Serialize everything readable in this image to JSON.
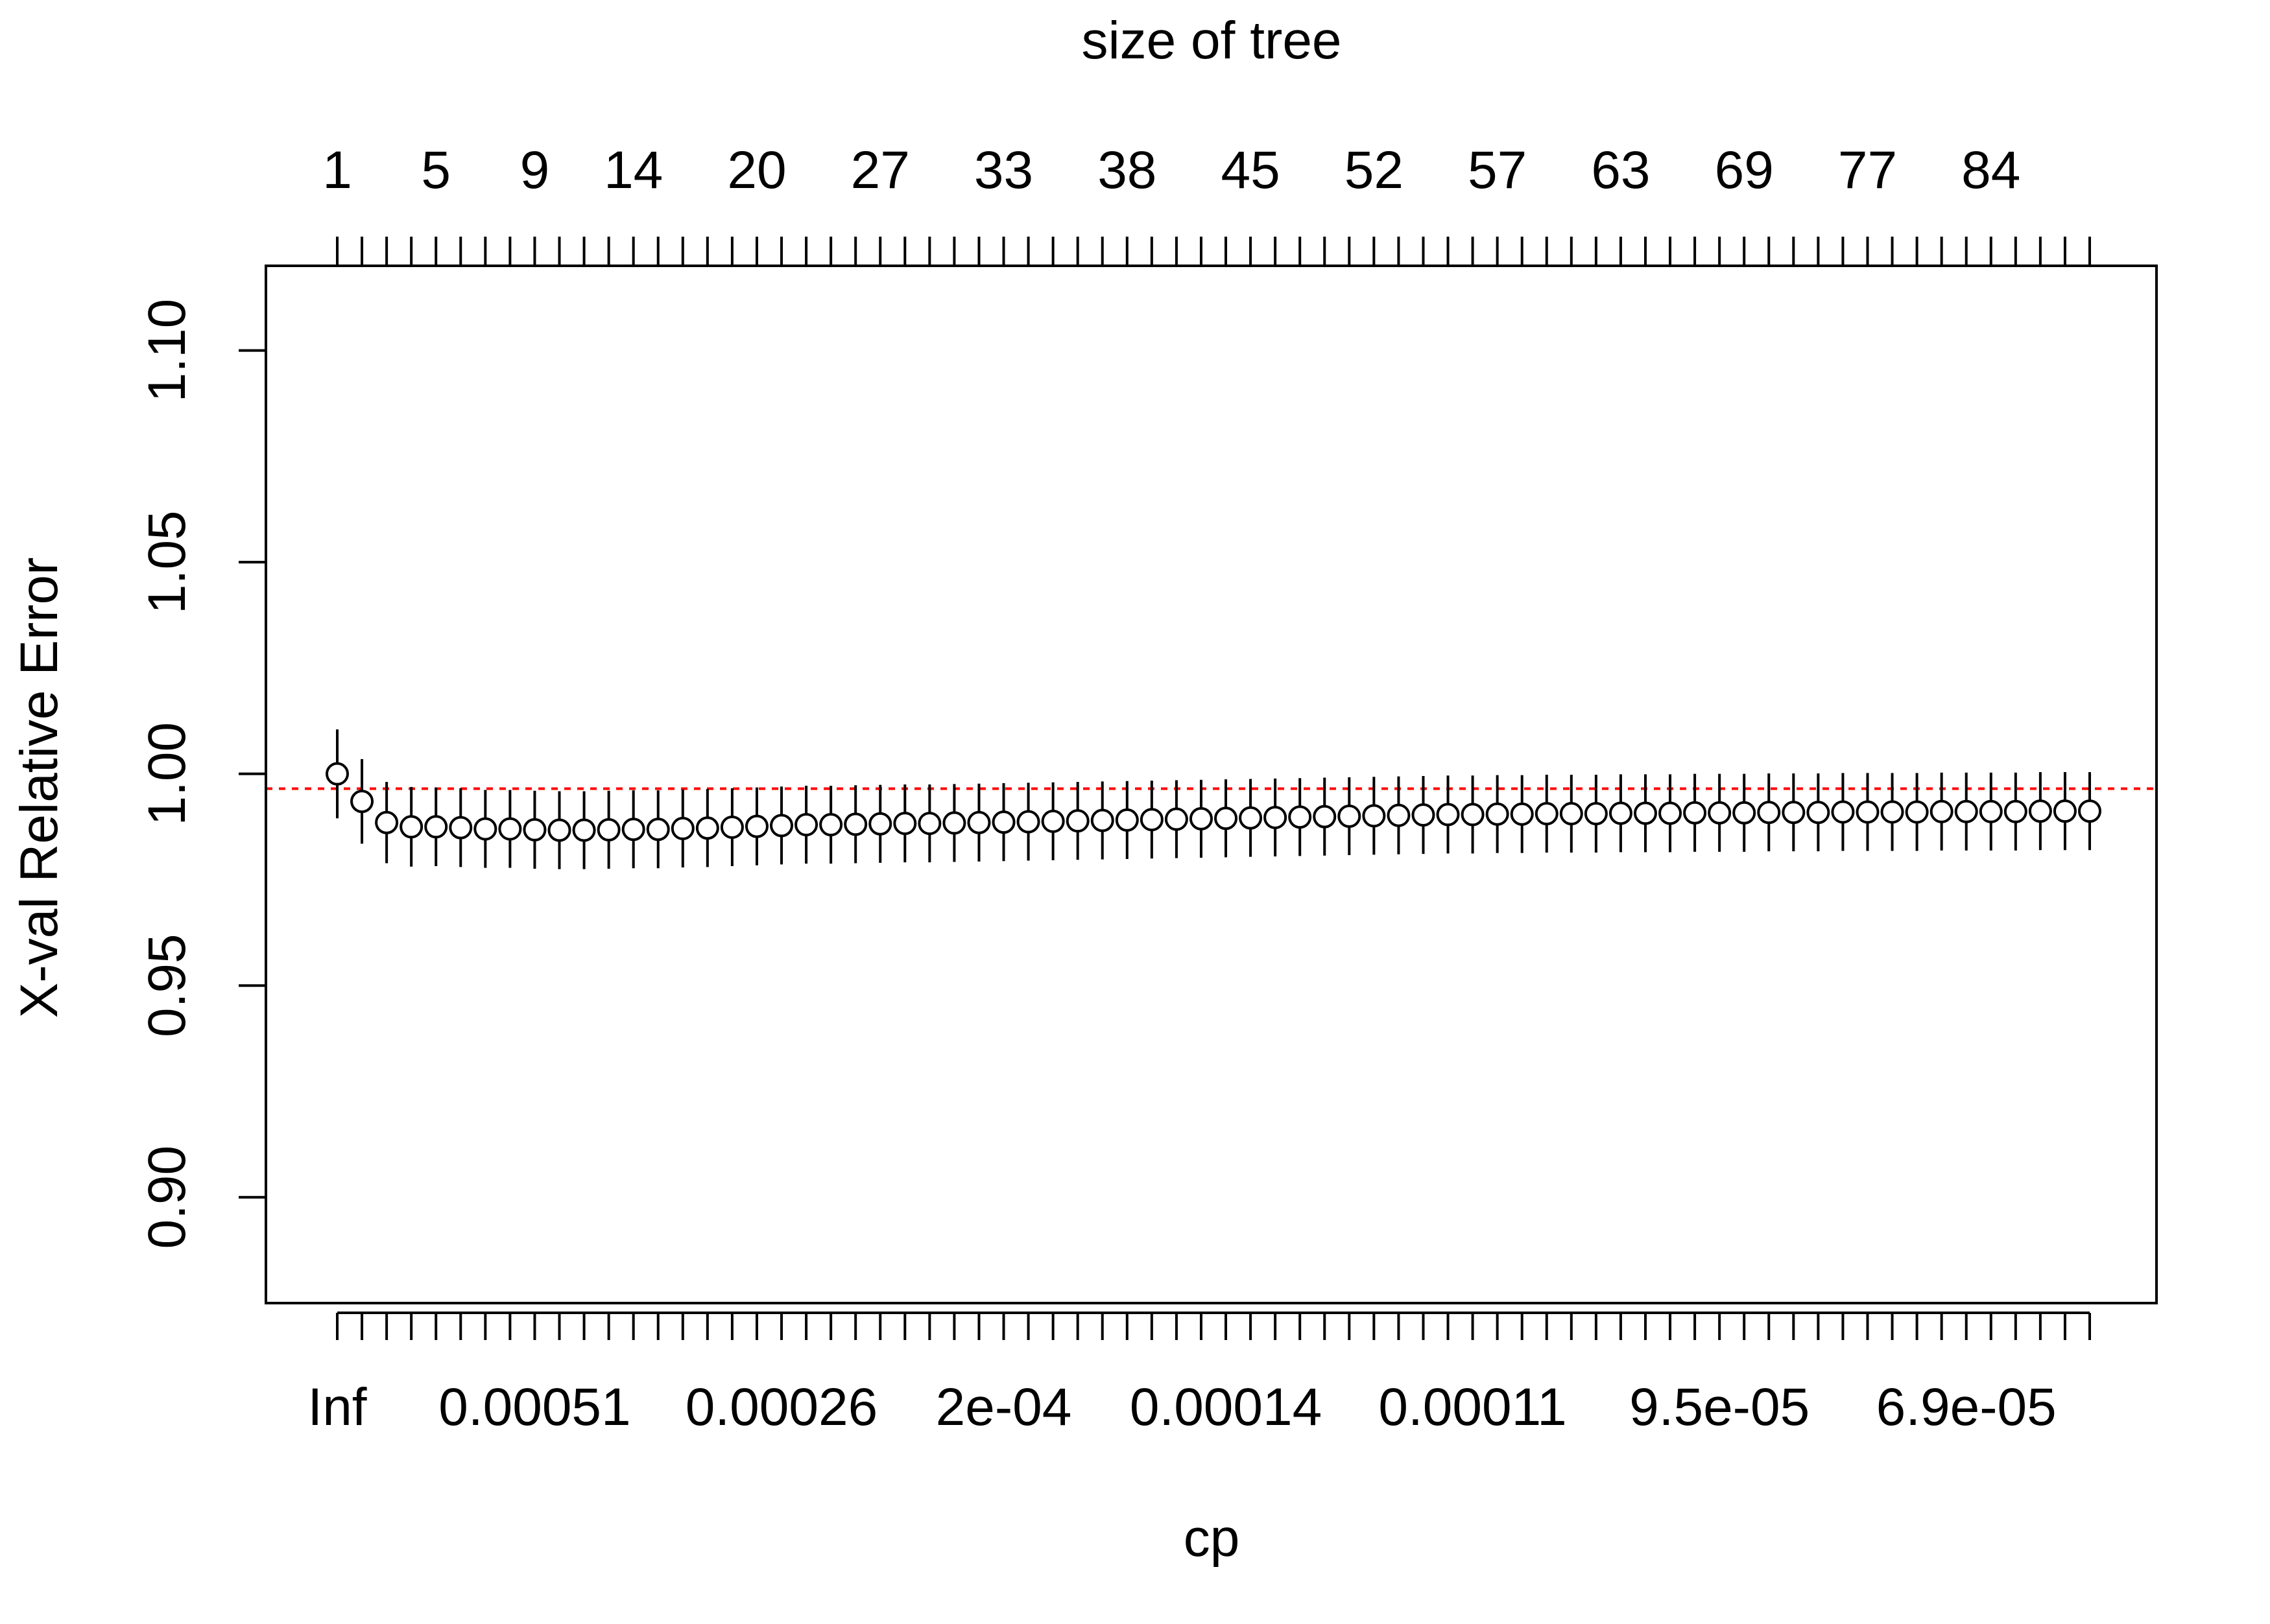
{
  "chart_data": {
    "type": "scatter",
    "subtype": "rpart-plotcp",
    "xlabel": "cp",
    "ylabel": "X-val Relative Error",
    "top_axis_label": "size of tree",
    "ylim": [
      0.875,
      1.12
    ],
    "y_ticks": [
      0.9,
      0.95,
      1.0,
      1.05,
      1.1
    ],
    "y_tick_labels": [
      "0.90",
      "0.95",
      "1.00",
      "1.05",
      "1.10"
    ],
    "n_points": 72,
    "x_tick_labels": [
      {
        "index": 0,
        "label": "Inf"
      },
      {
        "index": 8,
        "label": "0.00051"
      },
      {
        "index": 18,
        "label": "0.00026"
      },
      {
        "index": 27,
        "label": "2e-04"
      },
      {
        "index": 36,
        "label": "0.00014"
      },
      {
        "index": 46,
        "label": "0.00011"
      },
      {
        "index": 56,
        "label": "9.5e-05"
      },
      {
        "index": 66,
        "label": "6.9e-05"
      }
    ],
    "top_tick_labels": [
      {
        "index": 0,
        "label": "1"
      },
      {
        "index": 4,
        "label": "5"
      },
      {
        "index": 8,
        "label": "9"
      },
      {
        "index": 12,
        "label": "14"
      },
      {
        "index": 17,
        "label": "20"
      },
      {
        "index": 22,
        "label": "27"
      },
      {
        "index": 27,
        "label": "33"
      },
      {
        "index": 32,
        "label": "38"
      },
      {
        "index": 37,
        "label": "45"
      },
      {
        "index": 42,
        "label": "52"
      },
      {
        "index": 47,
        "label": "57"
      },
      {
        "index": 52,
        "label": "63"
      },
      {
        "index": 57,
        "label": "69"
      },
      {
        "index": 62,
        "label": "77"
      },
      {
        "index": 67,
        "label": "84"
      }
    ],
    "series": [
      {
        "values": [
          1.0,
          0.9935,
          0.9885,
          0.9875,
          0.9875,
          0.9873,
          0.987,
          0.987,
          0.9868,
          0.9867,
          0.9867,
          0.9868,
          0.9869,
          0.9869,
          0.9871,
          0.9872,
          0.9874,
          0.9876,
          0.9878,
          0.988,
          0.988,
          0.9881,
          0.9882,
          0.9883,
          0.9883,
          0.9884,
          0.9885,
          0.9886,
          0.9887,
          0.9888,
          0.9889,
          0.989,
          0.9891,
          0.9892,
          0.9893,
          0.9894,
          0.9895,
          0.9896,
          0.9897,
          0.9898,
          0.9899,
          0.99,
          0.9901,
          0.9902,
          0.9903,
          0.9904,
          0.9904,
          0.9905,
          0.9905,
          0.9906,
          0.9906,
          0.9906,
          0.9907,
          0.9907,
          0.9907,
          0.9908,
          0.9908,
          0.9908,
          0.9909,
          0.9909,
          0.9909,
          0.991,
          0.991,
          0.991,
          0.991,
          0.9911,
          0.9911,
          0.9911,
          0.9911,
          0.9912,
          0.9912,
          0.9912
        ],
        "errors": [
          0.0105,
          0.01,
          0.0096,
          0.0094,
          0.0093,
          0.0093,
          0.0092,
          0.0092,
          0.0092,
          0.0092,
          0.0092,
          0.0092,
          0.0092,
          0.0092,
          0.0092,
          0.0092,
          0.0092,
          0.0092,
          0.0092,
          0.0092,
          0.0092,
          0.0092,
          0.0092,
          0.0092,
          0.0092,
          0.0092,
          0.0092,
          0.0092,
          0.0092,
          0.0092,
          0.0092,
          0.0092,
          0.0092,
          0.0092,
          0.0092,
          0.0092,
          0.0092,
          0.0092,
          0.0092,
          0.0092,
          0.0092,
          0.0092,
          0.0092,
          0.0092,
          0.0092,
          0.0092,
          0.0092,
          0.0092,
          0.0092,
          0.0092,
          0.0092,
          0.0092,
          0.0092,
          0.0092,
          0.0092,
          0.0092,
          0.0092,
          0.0092,
          0.0092,
          0.0092,
          0.0092,
          0.0092,
          0.0092,
          0.0092,
          0.0092,
          0.0092,
          0.0092,
          0.0092,
          0.0092,
          0.0092,
          0.0092,
          0.0092
        ]
      }
    ],
    "reference_line": {
      "y": 0.9965,
      "style": "dotted",
      "color": "#ff0000"
    },
    "grid": false,
    "legend": "none"
  }
}
